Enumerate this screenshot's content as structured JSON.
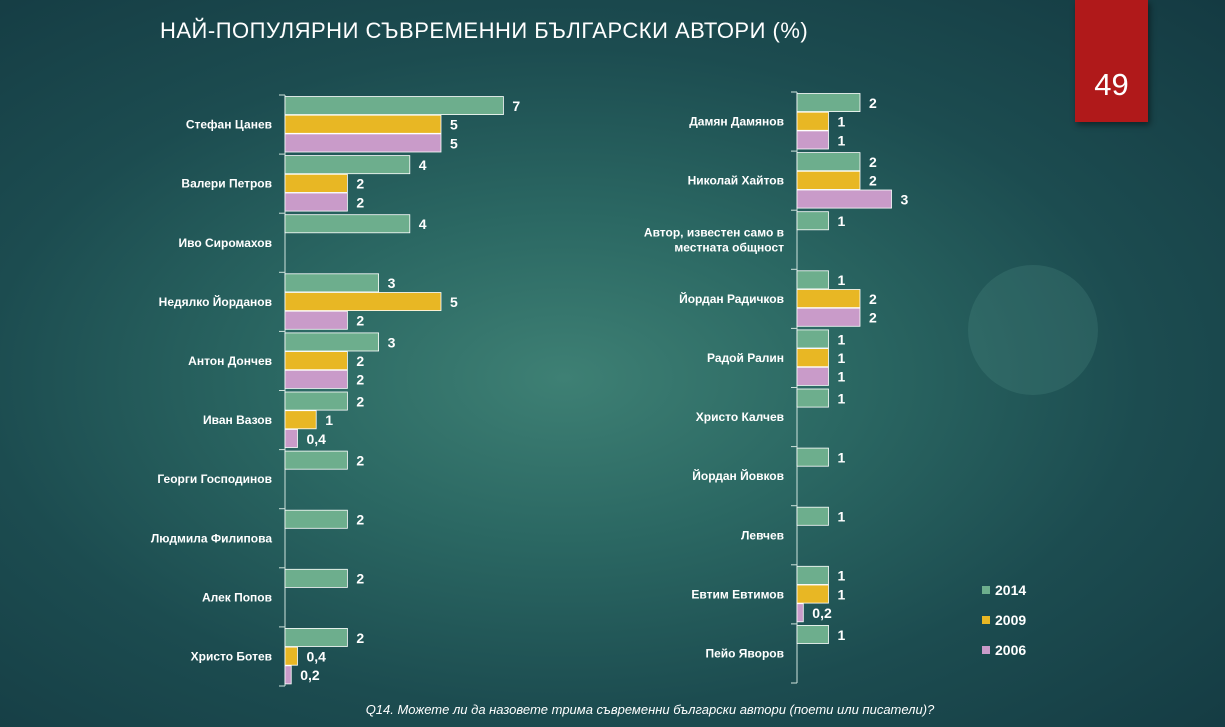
{
  "title": "НАЙ-ПОПУЛЯРНИ СЪВРЕМЕННИ БЪЛГАРСКИ АВТОРИ (%)",
  "page_number": "49",
  "footnote": "Q14. Можете ли да назовете трима съвременни български автори (поети или писатели)?",
  "colors": {
    "2014": "#6dae8d",
    "2009": "#e8b724",
    "2006": "#c99bc9"
  },
  "chart_data": [
    {
      "type": "bar",
      "orientation": "horizontal",
      "legend": [
        "2014",
        "2009",
        "2006"
      ],
      "legend_position": "bottom-right",
      "categories": [
        {
          "label": [
            "Стефан Цанев"
          ],
          "values": [
            7,
            5,
            5
          ],
          "labels": [
            "7",
            "5",
            "5"
          ]
        },
        {
          "label": [
            "Валери Петров"
          ],
          "values": [
            4,
            2,
            2
          ],
          "labels": [
            "4",
            "2",
            "2"
          ]
        },
        {
          "label": [
            "Иво Сиромахов"
          ],
          "values": [
            4,
            null,
            null
          ],
          "labels": [
            "4",
            "",
            ""
          ]
        },
        {
          "label": [
            "Недялко Йорданов"
          ],
          "values": [
            3,
            5,
            2
          ],
          "labels": [
            "3",
            "5",
            "2"
          ]
        },
        {
          "label": [
            "Антон Дончев"
          ],
          "values": [
            3,
            2,
            2
          ],
          "labels": [
            "3",
            "2",
            "2"
          ]
        },
        {
          "label": [
            "Иван Вазов"
          ],
          "values": [
            2,
            1,
            0.4
          ],
          "labels": [
            "2",
            "1",
            "0,4"
          ]
        },
        {
          "label": [
            "Георги Господинов"
          ],
          "values": [
            2,
            null,
            null
          ],
          "labels": [
            "2",
            "",
            ""
          ]
        },
        {
          "label": [
            "Людмила Филипова"
          ],
          "values": [
            2,
            null,
            null
          ],
          "labels": [
            "2",
            "",
            ""
          ]
        },
        {
          "label": [
            "Алек Попов"
          ],
          "values": [
            2,
            null,
            null
          ],
          "labels": [
            "2",
            "",
            ""
          ]
        },
        {
          "label": [
            "Христо Ботев"
          ],
          "values": [
            2,
            0.4,
            0.2
          ],
          "labels": [
            "2",
            "0,4",
            "0,2"
          ]
        }
      ]
    },
    {
      "type": "bar",
      "orientation": "horizontal",
      "legend": [
        "2014",
        "2009",
        "2006"
      ],
      "legend_position": "bottom-right",
      "categories": [
        {
          "label": [
            "Дамян Дамянов"
          ],
          "values": [
            2,
            1,
            1
          ],
          "labels": [
            "2",
            "1",
            "1"
          ]
        },
        {
          "label": [
            "Николай Хайтов"
          ],
          "values": [
            2,
            2,
            3
          ],
          "labels": [
            "2",
            "2",
            "3"
          ]
        },
        {
          "label": [
            "Автор, известен само в",
            "местната общност"
          ],
          "values": [
            1,
            null,
            null
          ],
          "labels": [
            "1",
            "",
            ""
          ]
        },
        {
          "label": [
            "Йордан Радичков"
          ],
          "values": [
            1,
            2,
            2
          ],
          "labels": [
            "1",
            "2",
            "2"
          ]
        },
        {
          "label": [
            "Радой Ралин"
          ],
          "values": [
            1,
            1,
            1
          ],
          "labels": [
            "1",
            "1",
            "1"
          ]
        },
        {
          "label": [
            "Христо Калчев"
          ],
          "values": [
            1,
            null,
            null
          ],
          "labels": [
            "1",
            "",
            ""
          ]
        },
        {
          "label": [
            "Йордан Йовков"
          ],
          "values": [
            1,
            null,
            null
          ],
          "labels": [
            "1",
            "",
            ""
          ]
        },
        {
          "label": [
            "Левчев"
          ],
          "values": [
            1,
            null,
            null
          ],
          "labels": [
            "1",
            "",
            ""
          ]
        },
        {
          "label": [
            "Евтим Евтимов"
          ],
          "values": [
            1,
            1,
            0.2
          ],
          "labels": [
            "1",
            "1",
            "0,2"
          ]
        },
        {
          "label": [
            "Пейо Яворов"
          ],
          "values": [
            1,
            null,
            null
          ],
          "labels": [
            "1",
            "",
            ""
          ]
        }
      ]
    }
  ]
}
